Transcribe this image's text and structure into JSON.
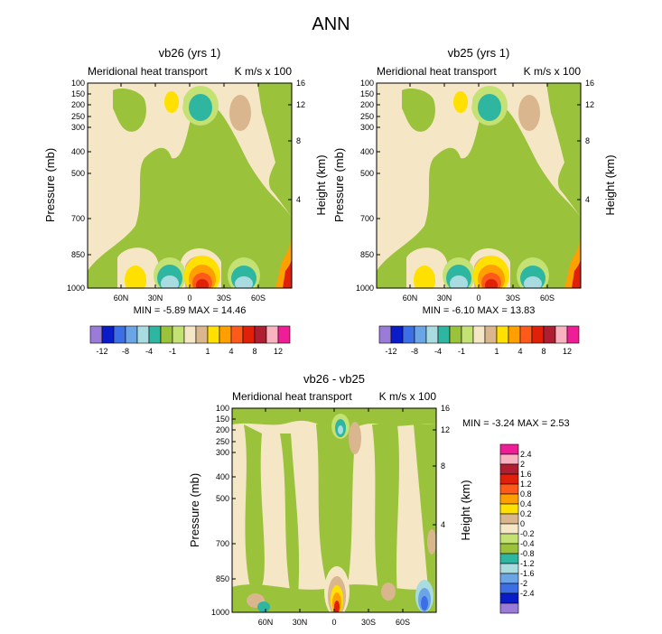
{
  "page_title": "ANN",
  "colors": {
    "beige": "#F5E6C5",
    "tan": "#D9B68D",
    "green": "#9AC23B",
    "lightgreen": "#C4E173",
    "teal": "#2FB6A0",
    "lightcyan": "#A8DCE0",
    "yellow": "#FFE000",
    "orange": "#FFA000",
    "redorange": "#FF5A1A",
    "red": "#E1200A",
    "blue": "#1E50C8"
  },
  "chart_data": [
    {
      "type": "heatmap",
      "title": "vb26 (yrs 1)",
      "left_label": "Meridional heat transport",
      "right_label": "K m/s x 100",
      "xlabel": "",
      "ylabel": "Pressure (mb)",
      "ylabel_right": "Height (km)",
      "x_ticks": [
        "60N",
        "30N",
        "0",
        "30S",
        "60S"
      ],
      "y_ticks": [
        "100",
        "150",
        "200",
        "250",
        "300",
        "400",
        "500",
        "700",
        "850",
        "1000"
      ],
      "y_ticks_right": [
        "16",
        "12",
        "8",
        "4"
      ],
      "stats": "MIN = -5.89  MAX = 14.46",
      "colorbar": {
        "orientation": "horizontal",
        "colors": [
          "#9A7CD8",
          "#0A1CC8",
          "#3C6EE6",
          "#6BA5E6",
          "#A8DCE0",
          "#2FB6A0",
          "#9AC23B",
          "#C4E173",
          "#F5E6C5",
          "#D9B68D",
          "#FFE000",
          "#FFA000",
          "#FF5A1A",
          "#E1200A",
          "#B01E32",
          "#F7B4C0",
          "#F01E96"
        ],
        "labels": [
          "-12",
          "-8",
          "-4",
          "-1",
          "1",
          "4",
          "8",
          "12"
        ]
      }
    },
    {
      "type": "heatmap",
      "title": "vb25 (yrs 1)",
      "left_label": "Meridional heat transport",
      "right_label": "K m/s x 100",
      "xlabel": "",
      "ylabel": "Pressure (mb)",
      "ylabel_right": "Height (km)",
      "x_ticks": [
        "60N",
        "30N",
        "0",
        "30S",
        "60S"
      ],
      "y_ticks": [
        "100",
        "150",
        "200",
        "250",
        "300",
        "400",
        "500",
        "700",
        "850",
        "1000"
      ],
      "y_ticks_right": [
        "16",
        "12",
        "8",
        "4"
      ],
      "stats": "MIN = -6.10  MAX = 13.83",
      "colorbar": {
        "orientation": "horizontal",
        "colors": [
          "#9A7CD8",
          "#0A1CC8",
          "#3C6EE6",
          "#6BA5E6",
          "#A8DCE0",
          "#2FB6A0",
          "#9AC23B",
          "#C4E173",
          "#F5E6C5",
          "#D9B68D",
          "#FFE000",
          "#FFA000",
          "#FF5A1A",
          "#E1200A",
          "#B01E32",
          "#F7B4C0",
          "#F01E96"
        ],
        "labels": [
          "-12",
          "-8",
          "-4",
          "-1",
          "1",
          "4",
          "8",
          "12"
        ]
      }
    },
    {
      "type": "heatmap",
      "title": "vb26 - vb25",
      "left_label": "Meridional heat transport",
      "right_label": "K m/s x 100",
      "xlabel": "",
      "ylabel": "Pressure (mb)",
      "ylabel_right": "Height (km)",
      "x_ticks": [
        "60N",
        "30N",
        "0",
        "30S",
        "60S"
      ],
      "y_ticks": [
        "100",
        "150",
        "200",
        "250",
        "300",
        "400",
        "500",
        "700",
        "850",
        "1000"
      ],
      "y_ticks_right": [
        "16",
        "12",
        "8",
        "4"
      ],
      "stats": "MIN = -3.24  MAX =  2.53",
      "colorbar": {
        "orientation": "vertical",
        "colors": [
          "#F01E96",
          "#F7B4C0",
          "#B01E32",
          "#E1200A",
          "#FF5A1A",
          "#FFA000",
          "#FFE000",
          "#D9B68D",
          "#F5E6C5",
          "#C4E173",
          "#9AC23B",
          "#2FB6A0",
          "#A8DCE0",
          "#6BA5E6",
          "#3C6EE6",
          "#0A1CC8",
          "#9A7CD8"
        ],
        "labels": [
          "2.4",
          "2",
          "1.6",
          "1.2",
          "0.8",
          "0.4",
          "0.2",
          "0",
          "-0.2",
          "-0.4",
          "-0.8",
          "-1.2",
          "-1.6",
          "-2",
          "-2.4"
        ]
      }
    }
  ]
}
